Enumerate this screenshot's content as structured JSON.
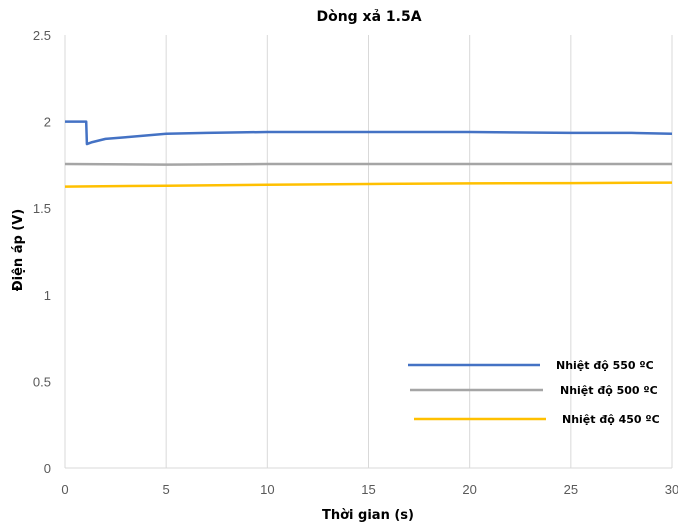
{
  "chart_data": {
    "type": "line",
    "title": "Dòng xả 1.5A",
    "xlabel": "Thời gian (s)",
    "ylabel": "Điện áp (V)",
    "xlim": [
      0,
      30
    ],
    "ylim": [
      0,
      2.5
    ],
    "xticks": [
      0,
      5,
      10,
      15,
      20,
      25,
      30
    ],
    "yticks": [
      0,
      0.5,
      1,
      1.5,
      2,
      2.5
    ],
    "ytick_labels": [
      "0",
      "0.5",
      "1",
      "1.5",
      "2",
      "2.5"
    ],
    "grid": "vertical",
    "legend_position": "bottom-right",
    "series": [
      {
        "name": "Nhiệt độ 550 ºC",
        "color": "#4472C4",
        "x": [
          0,
          1.05,
          1.08,
          1.3,
          2,
          3,
          4,
          5,
          7,
          10,
          15,
          20,
          25,
          28,
          30
        ],
        "y": [
          2.0,
          2.0,
          1.87,
          1.88,
          1.9,
          1.91,
          1.92,
          1.93,
          1.935,
          1.94,
          1.94,
          1.94,
          1.935,
          1.935,
          1.93
        ]
      },
      {
        "name": "Nhiệt độ 500 ºC",
        "color": "#A5A5A5",
        "x": [
          0,
          5,
          10,
          15,
          20,
          25,
          30
        ],
        "y": [
          1.755,
          1.752,
          1.755,
          1.755,
          1.755,
          1.755,
          1.755
        ]
      },
      {
        "name": "Nhiệt độ 450 ºC",
        "color": "#FFC000",
        "x": [
          0,
          5,
          10,
          15,
          20,
          25,
          30
        ],
        "y": [
          1.625,
          1.63,
          1.635,
          1.64,
          1.643,
          1.645,
          1.648
        ]
      }
    ]
  }
}
